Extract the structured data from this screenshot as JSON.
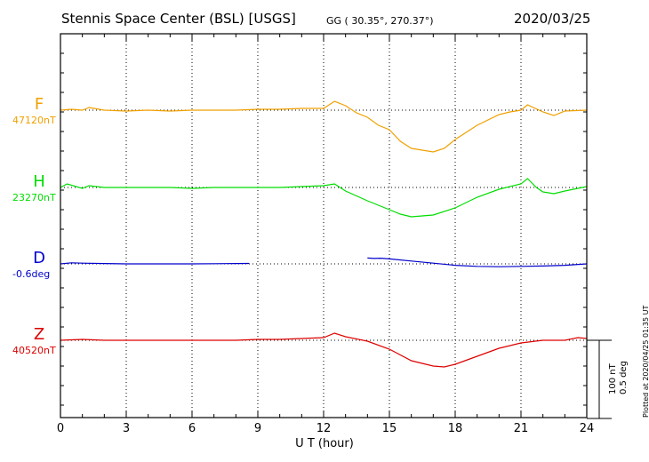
{
  "header": {
    "title": "Stennis Space Center (BSL)  [USGS]",
    "coords": "GG ( 30.35°, 270.37°)",
    "date": "2020/03/25"
  },
  "footer": {
    "plotted": "Plotted at 2020/04/25 01:35 UT",
    "scale_nt": "100 nT",
    "scale_deg": "0.5 deg"
  },
  "chart_data": {
    "type": "line",
    "title": "Stennis Space Center (BSL)  [USGS]",
    "xlabel": "U T (hour)",
    "xlim": [
      0,
      24
    ],
    "x_ticks": [
      0,
      3,
      6,
      9,
      12,
      15,
      18,
      21,
      24
    ],
    "x_tick_labels": [
      "0",
      "3",
      "6",
      "9",
      "12",
      "15",
      "18",
      "21",
      "24"
    ],
    "grid": true,
    "scale_bar": {
      "nT": 100,
      "deg": 0.5
    },
    "series": [
      {
        "name": "F",
        "baseline_label": "47120nT",
        "unit": "nT",
        "baseline": 47120,
        "color": "#f0a000",
        "segments": [
          [
            [
              0,
              47120
            ],
            [
              0.5,
              47121
            ],
            [
              1,
              47120
            ],
            [
              1.3,
              47123
            ],
            [
              2,
              47120
            ],
            [
              3,
              47119
            ],
            [
              4,
              47120
            ],
            [
              5,
              47119
            ],
            [
              6,
              47120
            ],
            [
              7,
              47120
            ],
            [
              8,
              47120
            ],
            [
              9,
              47121
            ],
            [
              10,
              47121
            ],
            [
              11,
              47122
            ],
            [
              12,
              47122
            ],
            [
              12.5,
              47130
            ],
            [
              13,
              47125
            ],
            [
              13.5,
              47117
            ],
            [
              14,
              47112
            ],
            [
              14.5,
              47103
            ],
            [
              15,
              47098
            ],
            [
              15.5,
              47085
            ],
            [
              16,
              47077
            ],
            [
              17,
              47073
            ],
            [
              17.5,
              47077
            ],
            [
              18,
              47087
            ],
            [
              19,
              47103
            ],
            [
              20,
              47115
            ],
            [
              20.5,
              47118
            ],
            [
              21,
              47120
            ],
            [
              21.3,
              47126
            ],
            [
              22,
              47118
            ],
            [
              22.5,
              47114
            ],
            [
              23,
              47119
            ],
            [
              24,
              47120
            ]
          ]
        ]
      },
      {
        "name": "H",
        "baseline_label": "23270nT",
        "unit": "nT",
        "baseline": 23270,
        "color": "#00dd00",
        "segments": [
          [
            [
              0,
              23270
            ],
            [
              0.3,
              23274
            ],
            [
              1,
              23269
            ],
            [
              1.3,
              23272
            ],
            [
              2,
              23270
            ],
            [
              3,
              23270
            ],
            [
              4,
              23270
            ],
            [
              5,
              23270
            ],
            [
              6,
              23269
            ],
            [
              7,
              23270
            ],
            [
              8,
              23270
            ],
            [
              9,
              23270
            ],
            [
              10,
              23270
            ],
            [
              11,
              23271
            ],
            [
              12,
              23272
            ],
            [
              12.5,
              23274
            ],
            [
              13,
              23266
            ],
            [
              14,
              23255
            ],
            [
              15,
              23245
            ],
            [
              15.5,
              23240
            ],
            [
              16,
              23237
            ],
            [
              17,
              23239
            ],
            [
              18,
              23247
            ],
            [
              19,
              23259
            ],
            [
              20,
              23268
            ],
            [
              21,
              23274
            ],
            [
              21.3,
              23280
            ],
            [
              21.7,
              23270
            ],
            [
              22,
              23265
            ],
            [
              22.5,
              23263
            ],
            [
              23,
              23266
            ],
            [
              24,
              23271
            ]
          ]
        ]
      },
      {
        "name": "D",
        "baseline_label": "-0.6deg",
        "unit": "deg",
        "baseline": -0.6,
        "color": "#0000cc",
        "segments": [
          [
            [
              0,
              -0.6
            ],
            [
              0.5,
              -0.585
            ],
            [
              1,
              -0.59
            ],
            [
              2,
              -0.595
            ],
            [
              3,
              -0.6
            ],
            [
              4,
              -0.6
            ],
            [
              5,
              -0.6
            ],
            [
              6,
              -0.6
            ],
            [
              7,
              -0.598
            ],
            [
              8,
              -0.595
            ],
            [
              8.6,
              -0.594
            ]
          ],
          [
            [
              14,
              -0.518
            ],
            [
              14.3,
              -0.524
            ],
            [
              14.6,
              -0.52
            ],
            [
              15,
              -0.53
            ],
            [
              16,
              -0.56
            ],
            [
              17,
              -0.59
            ],
            [
              18,
              -0.62
            ],
            [
              19,
              -0.635
            ],
            [
              20,
              -0.64
            ],
            [
              21,
              -0.635
            ],
            [
              22,
              -0.63
            ],
            [
              23,
              -0.62
            ],
            [
              24,
              -0.6
            ]
          ]
        ]
      },
      {
        "name": "Z",
        "baseline_label": "40520nT",
        "unit": "nT",
        "baseline": 40520,
        "color": "#dd0000",
        "segments": [
          [
            [
              0,
              40520
            ],
            [
              1,
              40521
            ],
            [
              2,
              40520
            ],
            [
              3,
              40520
            ],
            [
              4,
              40520
            ],
            [
              5,
              40520
            ],
            [
              6,
              40520
            ],
            [
              7,
              40520
            ],
            [
              8,
              40520
            ],
            [
              9,
              40521
            ],
            [
              10,
              40521
            ],
            [
              11,
              40522
            ],
            [
              12,
              40523
            ],
            [
              12.5,
              40528
            ],
            [
              13,
              40524
            ],
            [
              14,
              40519
            ],
            [
              15,
              40510
            ],
            [
              16,
              40497
            ],
            [
              17,
              40491
            ],
            [
              17.5,
              40490
            ],
            [
              18,
              40493
            ],
            [
              19,
              40502
            ],
            [
              20,
              40511
            ],
            [
              21,
              40517
            ],
            [
              22,
              40520
            ],
            [
              23,
              40520
            ],
            [
              23.6,
              40523
            ],
            [
              24,
              40522
            ]
          ]
        ]
      }
    ]
  }
}
